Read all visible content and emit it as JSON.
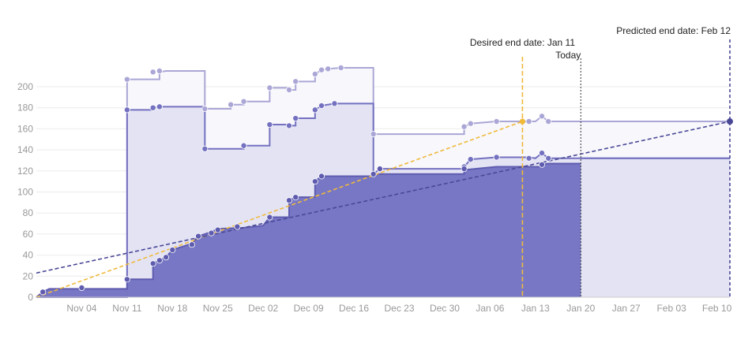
{
  "chart_data": {
    "type": "area",
    "x_type": "date",
    "xlim": [
      "2024-10-28",
      "2025-02-12"
    ],
    "ylim": [
      0,
      220
    ],
    "x_ticks": [
      {
        "date": "2024-11-04",
        "label": "Nov 04"
      },
      {
        "date": "2024-11-11",
        "label": "Nov 11"
      },
      {
        "date": "2024-11-18",
        "label": "Nov 18"
      },
      {
        "date": "2024-11-25",
        "label": "Nov 25"
      },
      {
        "date": "2024-12-02",
        "label": "Dec 02"
      },
      {
        "date": "2024-12-09",
        "label": "Dec 09"
      },
      {
        "date": "2024-12-16",
        "label": "Dec 16"
      },
      {
        "date": "2024-12-23",
        "label": "Dec 23"
      },
      {
        "date": "2024-12-30",
        "label": "Dec 30"
      },
      {
        "date": "2025-01-06",
        "label": "Jan 06"
      },
      {
        "date": "2025-01-13",
        "label": "Jan 13"
      },
      {
        "date": "2025-01-20",
        "label": "Jan 20"
      },
      {
        "date": "2025-01-27",
        "label": "Jan 27"
      },
      {
        "date": "2025-02-03",
        "label": "Feb 03"
      },
      {
        "date": "2025-02-10",
        "label": "Feb 10"
      }
    ],
    "y_ticks": [
      0,
      20,
      40,
      60,
      80,
      100,
      120,
      140,
      160,
      180,
      200
    ],
    "grid": true,
    "colors": {
      "upper": "#aaa6d6",
      "upper_fill": "#f7f7fc",
      "middle": "#7471c0",
      "middle_fill": "#e3e3f4",
      "completed": "#5f5cb0",
      "completed_fill": "#7777c5",
      "desired_line": "#f0b93a",
      "predicted_line": "#4a4896",
      "marker_line": "#333333"
    },
    "series": [
      {
        "role": "upper",
        "points": [
          {
            "x": "2024-10-28",
            "y": 0
          },
          {
            "x": "2024-11-11",
            "y": 0
          },
          {
            "x": "2024-11-11",
            "y": 207
          },
          {
            "x": "2024-11-16",
            "y": 207
          },
          {
            "x": "2024-11-16",
            "y": 214
          },
          {
            "x": "2024-11-17",
            "y": 215
          },
          {
            "x": "2024-11-23",
            "y": 215
          },
          {
            "x": "2024-11-23",
            "y": 179
          },
          {
            "x": "2024-11-27",
            "y": 179
          },
          {
            "x": "2024-11-27",
            "y": 183
          },
          {
            "x": "2024-11-29",
            "y": 183
          },
          {
            "x": "2024-11-29",
            "y": 186
          },
          {
            "x": "2024-12-03",
            "y": 186
          },
          {
            "x": "2024-12-03",
            "y": 199
          },
          {
            "x": "2024-12-06",
            "y": 199
          },
          {
            "x": "2024-12-06",
            "y": 197
          },
          {
            "x": "2024-12-07",
            "y": 197
          },
          {
            "x": "2024-12-07",
            "y": 205
          },
          {
            "x": "2024-12-10",
            "y": 205
          },
          {
            "x": "2024-12-10",
            "y": 212
          },
          {
            "x": "2024-12-11",
            "y": 216
          },
          {
            "x": "2024-12-12",
            "y": 217
          },
          {
            "x": "2024-12-14",
            "y": 218
          },
          {
            "x": "2024-12-19",
            "y": 218
          },
          {
            "x": "2024-12-19",
            "y": 155
          },
          {
            "x": "2025-01-02",
            "y": 155
          },
          {
            "x": "2025-01-02",
            "y": 162
          },
          {
            "x": "2025-01-03",
            "y": 165
          },
          {
            "x": "2025-01-07",
            "y": 167
          },
          {
            "x": "2025-01-13",
            "y": 167
          },
          {
            "x": "2025-01-14",
            "y": 172
          },
          {
            "x": "2025-01-15",
            "y": 167
          },
          {
            "x": "2025-02-12",
            "y": 167
          }
        ],
        "markers": [
          {
            "x": "2024-11-11",
            "y": 207
          },
          {
            "x": "2024-11-15",
            "y": 214
          },
          {
            "x": "2024-11-16",
            "y": 215
          },
          {
            "x": "2024-11-23",
            "y": 179
          },
          {
            "x": "2024-11-27",
            "y": 183
          },
          {
            "x": "2024-11-29",
            "y": 186
          },
          {
            "x": "2024-12-03",
            "y": 199
          },
          {
            "x": "2024-12-06",
            "y": 197
          },
          {
            "x": "2024-12-07",
            "y": 205
          },
          {
            "x": "2024-12-10",
            "y": 212
          },
          {
            "x": "2024-12-11",
            "y": 216
          },
          {
            "x": "2024-12-12",
            "y": 217
          },
          {
            "x": "2024-12-14",
            "y": 218
          },
          {
            "x": "2024-12-19",
            "y": 155
          },
          {
            "x": "2025-01-02",
            "y": 162
          },
          {
            "x": "2025-01-03",
            "y": 165
          },
          {
            "x": "2025-01-07",
            "y": 167
          },
          {
            "x": "2025-01-12",
            "y": 167
          },
          {
            "x": "2025-01-14",
            "y": 172
          },
          {
            "x": "2025-01-15",
            "y": 167
          }
        ]
      },
      {
        "role": "middle",
        "points": [
          {
            "x": "2024-10-28",
            "y": 0
          },
          {
            "x": "2024-11-11",
            "y": 0
          },
          {
            "x": "2024-11-11",
            "y": 178
          },
          {
            "x": "2024-11-15",
            "y": 178
          },
          {
            "x": "2024-11-15",
            "y": 180
          },
          {
            "x": "2024-11-16",
            "y": 181
          },
          {
            "x": "2024-11-23",
            "y": 181
          },
          {
            "x": "2024-11-23",
            "y": 141
          },
          {
            "x": "2024-11-29",
            "y": 141
          },
          {
            "x": "2024-11-29",
            "y": 144
          },
          {
            "x": "2024-12-03",
            "y": 144
          },
          {
            "x": "2024-12-03",
            "y": 164
          },
          {
            "x": "2024-12-06",
            "y": 164
          },
          {
            "x": "2024-12-06",
            "y": 163
          },
          {
            "x": "2024-12-07",
            "y": 163
          },
          {
            "x": "2024-12-07",
            "y": 170
          },
          {
            "x": "2024-12-10",
            "y": 170
          },
          {
            "x": "2024-12-10",
            "y": 178
          },
          {
            "x": "2024-12-11",
            "y": 182
          },
          {
            "x": "2024-12-13",
            "y": 184
          },
          {
            "x": "2024-12-19",
            "y": 184
          },
          {
            "x": "2024-12-19",
            "y": 117
          },
          {
            "x": "2024-12-20",
            "y": 122
          },
          {
            "x": "2025-01-02",
            "y": 122
          },
          {
            "x": "2025-01-02",
            "y": 124
          },
          {
            "x": "2025-01-03",
            "y": 131
          },
          {
            "x": "2025-01-07",
            "y": 133
          },
          {
            "x": "2025-01-12",
            "y": 133
          },
          {
            "x": "2025-01-13",
            "y": 132
          },
          {
            "x": "2025-01-14",
            "y": 137
          },
          {
            "x": "2025-01-15",
            "y": 132
          },
          {
            "x": "2025-02-12",
            "y": 132
          }
        ],
        "markers": [
          {
            "x": "2024-11-11",
            "y": 178
          },
          {
            "x": "2024-11-15",
            "y": 180
          },
          {
            "x": "2024-11-16",
            "y": 181
          },
          {
            "x": "2024-11-23",
            "y": 141
          },
          {
            "x": "2024-11-29",
            "y": 144
          },
          {
            "x": "2024-12-03",
            "y": 164
          },
          {
            "x": "2024-12-06",
            "y": 163
          },
          {
            "x": "2024-12-07",
            "y": 170
          },
          {
            "x": "2024-12-10",
            "y": 178
          },
          {
            "x": "2024-12-11",
            "y": 182
          },
          {
            "x": "2024-12-13",
            "y": 184
          },
          {
            "x": "2024-12-20",
            "y": 122
          },
          {
            "x": "2025-01-02",
            "y": 124
          },
          {
            "x": "2025-01-03",
            "y": 131
          },
          {
            "x": "2025-01-07",
            "y": 133
          },
          {
            "x": "2025-01-12",
            "y": 132
          },
          {
            "x": "2025-01-14",
            "y": 137
          },
          {
            "x": "2025-01-15",
            "y": 132
          }
        ]
      },
      {
        "role": "completed",
        "points": [
          {
            "x": "2024-10-28",
            "y": 0
          },
          {
            "x": "2024-10-29",
            "y": 5
          },
          {
            "x": "2024-10-30",
            "y": 8
          },
          {
            "x": "2024-11-11",
            "y": 8
          },
          {
            "x": "2024-11-11",
            "y": 17
          },
          {
            "x": "2024-11-15",
            "y": 17
          },
          {
            "x": "2024-11-15",
            "y": 32
          },
          {
            "x": "2024-11-16",
            "y": 35
          },
          {
            "x": "2024-11-17",
            "y": 38
          },
          {
            "x": "2024-11-18",
            "y": 45
          },
          {
            "x": "2024-11-21",
            "y": 51
          },
          {
            "x": "2024-11-22",
            "y": 58
          },
          {
            "x": "2024-11-24",
            "y": 62
          },
          {
            "x": "2024-11-25",
            "y": 65
          },
          {
            "x": "2024-11-29",
            "y": 66
          },
          {
            "x": "2024-12-02",
            "y": 68
          },
          {
            "x": "2024-12-03",
            "y": 76
          },
          {
            "x": "2024-12-06",
            "y": 76
          },
          {
            "x": "2024-12-06",
            "y": 92
          },
          {
            "x": "2024-12-07",
            "y": 95
          },
          {
            "x": "2024-12-10",
            "y": 95
          },
          {
            "x": "2024-12-10",
            "y": 110
          },
          {
            "x": "2024-12-11",
            "y": 115
          },
          {
            "x": "2024-12-19",
            "y": 115
          },
          {
            "x": "2024-12-19",
            "y": 117
          },
          {
            "x": "2025-01-02",
            "y": 117
          },
          {
            "x": "2025-01-02",
            "y": 121
          },
          {
            "x": "2025-01-07",
            "y": 124
          },
          {
            "x": "2025-01-14",
            "y": 124
          },
          {
            "x": "2025-01-14",
            "y": 126
          },
          {
            "x": "2025-01-15",
            "y": 127
          },
          {
            "x": "2025-01-20",
            "y": 127
          }
        ],
        "markers": [
          {
            "x": "2024-10-29",
            "y": 5
          },
          {
            "x": "2024-11-04",
            "y": 9
          },
          {
            "x": "2024-11-11",
            "y": 17
          },
          {
            "x": "2024-11-15",
            "y": 32
          },
          {
            "x": "2024-11-16",
            "y": 35
          },
          {
            "x": "2024-11-17",
            "y": 38
          },
          {
            "x": "2024-11-18",
            "y": 45
          },
          {
            "x": "2024-11-21",
            "y": 50
          },
          {
            "x": "2024-11-22",
            "y": 58
          },
          {
            "x": "2024-11-24",
            "y": 61
          },
          {
            "x": "2024-11-25",
            "y": 64
          },
          {
            "x": "2024-11-28",
            "y": 67
          },
          {
            "x": "2024-12-03",
            "y": 76
          },
          {
            "x": "2024-12-06",
            "y": 92
          },
          {
            "x": "2024-12-07",
            "y": 95
          },
          {
            "x": "2024-12-10",
            "y": 110
          },
          {
            "x": "2024-12-11",
            "y": 115
          },
          {
            "x": "2024-12-19",
            "y": 117
          },
          {
            "x": "2024-12-20",
            "y": 122
          },
          {
            "x": "2025-01-02",
            "y": 122
          },
          {
            "x": "2025-01-14",
            "y": 126
          }
        ]
      },
      {
        "role": "projected-scope",
        "points": [
          {
            "x": "2025-01-20",
            "y": 132
          },
          {
            "x": "2025-02-12",
            "y": 132
          }
        ]
      }
    ],
    "desired_trend": {
      "points": [
        {
          "x": "2024-10-28",
          "y": 0
        },
        {
          "x": "2025-01-11",
          "y": 167
        }
      ],
      "end_marker": {
        "x": "2025-01-11",
        "y": 167
      }
    },
    "predicted_trend": {
      "points": [
        {
          "x": "2024-10-28",
          "y": 23
        },
        {
          "x": "2025-02-12",
          "y": 167
        }
      ],
      "end_marker": {
        "x": "2025-02-12",
        "y": 167
      }
    },
    "annotations": [
      {
        "id": "desired",
        "label": "Desired end date: Jan 11",
        "date": "2025-01-11",
        "style": "yellow-dashed"
      },
      {
        "id": "today",
        "label": "Today",
        "date": "2025-01-20",
        "style": "black-dotted"
      },
      {
        "id": "predicted",
        "label": "Predicted end date: Feb 12",
        "date": "2025-02-12",
        "style": "navy-dashed"
      }
    ]
  }
}
